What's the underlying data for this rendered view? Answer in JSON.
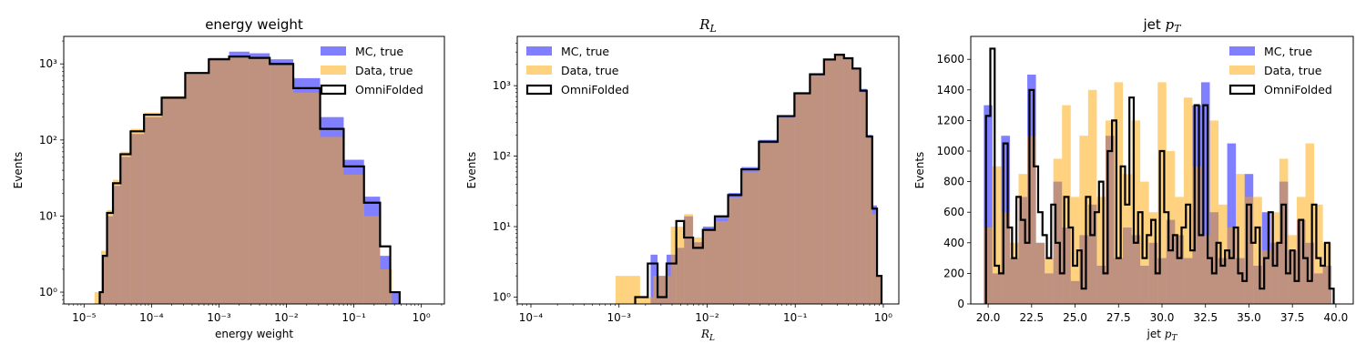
{
  "colors": {
    "mc": "#0000ff",
    "data": "#ffa500",
    "omni": "#000000"
  },
  "legend_labels": [
    "MC, true",
    "Data, true",
    "OmniFolded"
  ],
  "chart_data": [
    {
      "type": "histogram",
      "title": "energy weight",
      "xlabel": "energy weight",
      "ylabel": "Events",
      "xscale": "log",
      "yscale": "log",
      "xlim": [
        5e-06,
        2.2
      ],
      "ylim": [
        0.7,
        2300
      ],
      "xticks": [
        "10⁻⁵",
        "10⁻⁴",
        "10⁻³",
        "10⁻²",
        "10⁻¹",
        "10⁰"
      ],
      "yticks": [
        "10⁰",
        "10¹",
        "10²",
        "10³"
      ],
      "legend_position": "top-right",
      "series": [
        {
          "name": "MC, true",
          "style": "filled",
          "x": [
            1.8e-05,
            2e-05,
            2.4e-05,
            3e-05,
            4e-05,
            6e-05,
            0.0001,
            0.0002,
            0.0005,
            0.001,
            0.002,
            0.004,
            0.008,
            0.02,
            0.05,
            0.1,
            0.2,
            0.3,
            0.4,
            0.45
          ],
          "y": [
            1,
            3,
            10,
            25,
            60,
            120,
            200,
            350,
            750,
            1200,
            1450,
            1380,
            1150,
            650,
            200,
            55,
            18,
            3,
            1,
            1
          ]
        },
        {
          "name": "Data, true",
          "style": "filled",
          "x": [
            1.6e-05,
            2e-05,
            2.4e-05,
            3e-05,
            4e-05,
            6e-05,
            0.0001,
            0.0002,
            0.0005,
            0.001,
            0.002,
            0.004,
            0.008,
            0.02,
            0.05,
            0.1,
            0.2,
            0.3
          ],
          "y": [
            1,
            3.5,
            12,
            30,
            70,
            140,
            230,
            380,
            780,
            1150,
            1250,
            1180,
            950,
            420,
            110,
            35,
            10,
            2
          ]
        },
        {
          "name": "OmniFolded",
          "style": "step",
          "x": [
            1.8e-05,
            2e-05,
            2.4e-05,
            3e-05,
            4e-05,
            6e-05,
            0.0001,
            0.0002,
            0.0005,
            0.001,
            0.002,
            0.004,
            0.008,
            0.02,
            0.05,
            0.1,
            0.2,
            0.3,
            0.4,
            0.45
          ],
          "y": [
            1,
            3,
            11,
            27,
            65,
            130,
            215,
            360,
            760,
            1150,
            1250,
            1200,
            1000,
            480,
            140,
            45,
            15,
            4,
            1,
            1
          ]
        }
      ]
    },
    {
      "type": "histogram",
      "title": "R",
      "title_sub": "L",
      "xlabel": "R",
      "xlabel_sub": "L",
      "ylabel": "Events",
      "xscale": "log",
      "yscale": "log",
      "xlim": [
        7e-05,
        1.5
      ],
      "ylim": [
        0.8,
        5000
      ],
      "xticks": [
        "10⁻⁴",
        "10⁻³",
        "10⁻²",
        "10⁻¹",
        "10⁰"
      ],
      "yticks": [
        "10⁰",
        "10¹",
        "10²",
        "10³"
      ],
      "legend_position": "top-left",
      "series": [
        {
          "name": "MC, true",
          "style": "filled",
          "x": [
            0.0025,
            0.003,
            0.004,
            0.005,
            0.006,
            0.008,
            0.01,
            0.015,
            0.02,
            0.03,
            0.05,
            0.08,
            0.12,
            0.18,
            0.25,
            0.32,
            0.4,
            0.5,
            0.6,
            0.7,
            0.8,
            0.9
          ],
          "y": [
            4,
            2,
            4,
            5,
            14,
            6,
            10,
            14,
            30,
            70,
            170,
            380,
            800,
            1500,
            2400,
            2800,
            2500,
            1800,
            900,
            200,
            20,
            2
          ]
        },
        {
          "name": "Data, true",
          "style": "filled",
          "x": [
            0.001,
            0.0012,
            0.0015,
            0.002,
            0.003,
            0.005,
            0.006,
            0.008,
            0.01,
            0.015,
            0.02,
            0.03,
            0.05,
            0.08,
            0.12,
            0.18,
            0.25,
            0.32,
            0.4,
            0.5,
            0.6,
            0.7,
            0.8,
            0.9
          ],
          "y": [
            2,
            2,
            2,
            1,
            2,
            10,
            15,
            7,
            9,
            12,
            26,
            60,
            150,
            350,
            750,
            1400,
            2300,
            2700,
            2400,
            1700,
            800,
            180,
            15,
            2
          ]
        },
        {
          "name": "OmniFolded",
          "style": "step",
          "x": [
            0.0018,
            0.0025,
            0.003,
            0.004,
            0.005,
            0.006,
            0.008,
            0.01,
            0.015,
            0.02,
            0.03,
            0.05,
            0.08,
            0.12,
            0.18,
            0.25,
            0.32,
            0.4,
            0.5,
            0.6,
            0.7,
            0.8,
            0.9
          ],
          "y": [
            1,
            3,
            1,
            3,
            12,
            7,
            5,
            9,
            14,
            28,
            65,
            160,
            370,
            780,
            1450,
            2350,
            2750,
            2450,
            1750,
            850,
            190,
            18,
            2
          ]
        }
      ]
    },
    {
      "type": "histogram",
      "title": "jet ",
      "title_var": "p",
      "title_sub": "T",
      "xlabel": "jet ",
      "xlabel_var": "p",
      "xlabel_sub": "T",
      "ylabel": "Events",
      "xscale": "linear",
      "yscale": "linear",
      "xlim": [
        19.0,
        41.0
      ],
      "ylim": [
        0,
        1750
      ],
      "xticks": [
        "20.0",
        "22.5",
        "25.0",
        "27.5",
        "30.0",
        "32.5",
        "35.0",
        "37.5",
        "40.0"
      ],
      "yticks": [
        "0",
        "200",
        "400",
        "600",
        "800",
        "1000",
        "1200",
        "1400",
        "1600"
      ],
      "legend_position": "top-right",
      "series": [
        {
          "name": "MC, true",
          "style": "filled",
          "x": [
            20.0,
            20.5,
            21.0,
            21.5,
            22.0,
            22.5,
            23.0,
            23.5,
            24.0,
            24.5,
            25.0,
            25.5,
            26.0,
            26.5,
            27.0,
            27.5,
            28.0,
            28.5,
            29.0,
            29.5,
            30.0,
            30.5,
            31.0,
            31.5,
            32.0,
            32.5,
            33.0,
            33.5,
            34.0,
            34.5,
            35.0,
            35.5,
            36.0,
            36.5,
            37.0,
            37.5,
            38.0,
            38.5,
            39.0,
            39.5
          ],
          "y": [
            1300,
            200,
            1100,
            300,
            700,
            1500,
            400,
            200,
            800,
            500,
            150,
            450,
            650,
            250,
            1100,
            300,
            500,
            450,
            250,
            400,
            300,
            550,
            450,
            300,
            1300,
            1450,
            600,
            300,
            1050,
            300,
            850,
            250,
            600,
            400,
            800,
            350,
            550,
            400,
            200,
            250
          ]
        },
        {
          "name": "Data, true",
          "style": "filled",
          "x": [
            20.0,
            20.5,
            21.0,
            21.5,
            22.0,
            22.5,
            23.0,
            23.5,
            24.0,
            24.5,
            25.0,
            25.5,
            26.0,
            26.5,
            27.0,
            27.5,
            28.0,
            28.5,
            29.0,
            29.5,
            30.0,
            30.5,
            31.0,
            31.5,
            32.0,
            32.5,
            33.0,
            33.5,
            34.0,
            34.5,
            35.0,
            35.5,
            36.0,
            36.5,
            37.0,
            37.5,
            38.0,
            38.5,
            39.0,
            39.5
          ],
          "y": [
            500,
            900,
            600,
            400,
            850,
            1100,
            400,
            300,
            950,
            1300,
            700,
            1100,
            1400,
            700,
            1200,
            1450,
            850,
            1200,
            800,
            600,
            1450,
            1000,
            700,
            1350,
            900,
            450,
            1200,
            650,
            500,
            850,
            700,
            700,
            350,
            600,
            950,
            450,
            700,
            1050,
            650,
            400
          ]
        },
        {
          "name": "OmniFolded",
          "style": "step",
          "x": [
            20.0,
            20.25,
            20.5,
            20.75,
            21.0,
            21.25,
            21.5,
            21.75,
            22.0,
            22.25,
            22.5,
            22.75,
            23.0,
            23.25,
            23.5,
            23.75,
            24.0,
            24.25,
            24.5,
            24.75,
            25.0,
            25.25,
            25.5,
            25.75,
            26.0,
            26.25,
            26.5,
            26.75,
            27.0,
            27.25,
            27.5,
            27.75,
            28.0,
            28.25,
            28.5,
            28.75,
            29.0,
            29.25,
            29.5,
            29.75,
            30.0,
            30.25,
            30.5,
            30.75,
            31.0,
            31.25,
            31.5,
            31.75,
            32.0,
            32.25,
            32.5,
            32.75,
            33.0,
            33.25,
            33.5,
            33.75,
            34.0,
            34.25,
            34.5,
            34.75,
            35.0,
            35.25,
            35.5,
            35.75,
            36.0,
            36.25,
            36.5,
            36.75,
            37.0,
            37.25,
            37.5,
            37.75,
            38.0,
            38.25,
            38.5,
            38.75,
            39.0,
            39.25,
            39.5,
            39.75
          ],
          "y": [
            1230,
            1670,
            250,
            200,
            1050,
            500,
            300,
            700,
            550,
            400,
            1400,
            900,
            600,
            450,
            300,
            650,
            400,
            200,
            700,
            500,
            250,
            350,
            100,
            700,
            450,
            600,
            800,
            200,
            1000,
            1200,
            300,
            900,
            650,
            1350,
            400,
            600,
            300,
            450,
            550,
            200,
            1000,
            600,
            350,
            450,
            300,
            500,
            650,
            350,
            1300,
            450,
            1300,
            300,
            200,
            400,
            250,
            350,
            300,
            500,
            200,
            150,
            650,
            400,
            500,
            100,
            300,
            600,
            250,
            400,
            650,
            200,
            350,
            150,
            550,
            300,
            150,
            650,
            300,
            250,
            400,
            100
          ]
        }
      ]
    }
  ]
}
